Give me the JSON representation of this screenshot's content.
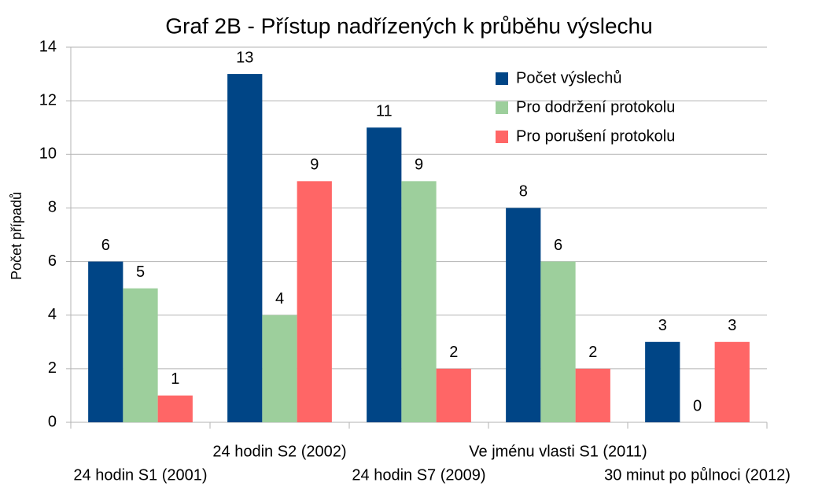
{
  "chart_data": {
    "type": "bar",
    "title": "Graf 2B - Přístup nadřízených k průběhu výslechu",
    "y_label": "Počet případů",
    "categories": [
      "24 hodin S1 (2001)",
      "24 hodin S2 (2002)",
      "24 hodin S7 (2009)",
      "Ve jménu vlasti S1 (2011)",
      "30 minut po půlnoci (2012)"
    ],
    "series": [
      {
        "name": "Počet výslechů",
        "color": "#004586",
        "values": [
          6,
          13,
          11,
          8,
          3
        ]
      },
      {
        "name": "Pro dodržení protokolu",
        "color": "#9dcf9c",
        "values": [
          5,
          4,
          9,
          6,
          0
        ]
      },
      {
        "name": "Pro porušení protokolu",
        "color": "#ff6666",
        "values": [
          1,
          9,
          2,
          2,
          3
        ]
      }
    ],
    "ylim": [
      0,
      14
    ],
    "yticks": [
      0,
      2,
      4,
      6,
      8,
      10,
      12,
      14
    ],
    "grid": true,
    "legend": "top-right"
  }
}
